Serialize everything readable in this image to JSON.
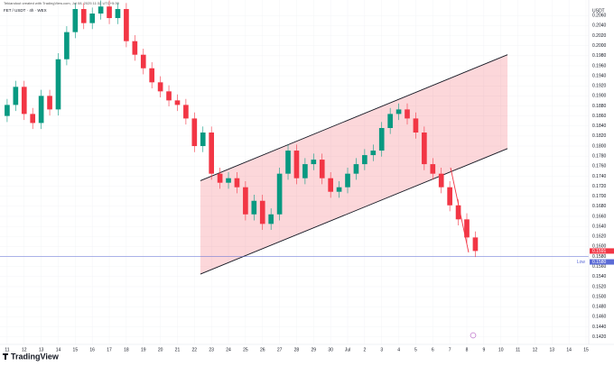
{
  "header": {
    "credit": "Tekiandout created with TradingView.com, Jul 08, 2025 11:32 UTC+5:30",
    "symbol": "FET / USDT · 4h · WEX"
  },
  "brand": "TradingView",
  "chart_data": {
    "type": "candlestick",
    "y_axis_title": "USDT",
    "up_color": "#089981",
    "down_color": "#f23645",
    "x": [
      0,
      0.5,
      1,
      1.5,
      2,
      2.5,
      3,
      3.5,
      4,
      4.5,
      5,
      5.5,
      6,
      6.5,
      7,
      7.5,
      8,
      8.5,
      9,
      9.5,
      10,
      10.5,
      11,
      11.5,
      12,
      12.5,
      13,
      13.5,
      14,
      14.5,
      15,
      15.5,
      16,
      16.5,
      17,
      17.5,
      18,
      18.5,
      19,
      19.5,
      20,
      20.5,
      21,
      21.5,
      22,
      22.5,
      23,
      23.5,
      24,
      24.5,
      25,
      25.5,
      26,
      26.5,
      27,
      27.5
    ],
    "open": [
      0.186,
      0.1882,
      0.1918,
      0.1864,
      0.1846,
      0.19,
      0.1873,
      0.1973,
      0.2027,
      0.2073,
      0.2045,
      0.2064,
      0.2078,
      0.2055,
      0.2073,
      0.2009,
      0.1982,
      0.1955,
      0.1927,
      0.1909,
      0.1891,
      0.1882,
      0.1855,
      0.18,
      0.1827,
      0.1745,
      0.1727,
      0.1736,
      0.1718,
      0.1664,
      0.1691,
      0.1645,
      0.1664,
      0.1745,
      0.1791,
      0.1736,
      0.1764,
      0.1773,
      0.1736,
      0.1709,
      0.1718,
      0.1745,
      0.1764,
      0.1782,
      0.1791,
      0.1836,
      0.1864,
      0.1873,
      0.1855,
      0.1827,
      0.1764,
      0.1745,
      0.1718,
      0.1682,
      0.1654,
      0.1618
    ],
    "high": [
      0.1894,
      0.193,
      0.193,
      0.1876,
      0.1912,
      0.1912,
      0.1985,
      0.2039,
      0.2085,
      0.2085,
      0.2076,
      0.209,
      0.209,
      0.2085,
      0.2085,
      0.2021,
      0.1994,
      0.1967,
      0.1939,
      0.1921,
      0.1903,
      0.1894,
      0.1867,
      0.1839,
      0.1839,
      0.1757,
      0.1748,
      0.1748,
      0.173,
      0.1703,
      0.1703,
      0.1676,
      0.1757,
      0.1803,
      0.1803,
      0.1776,
      0.1785,
      0.1785,
      0.1748,
      0.173,
      0.1757,
      0.1776,
      0.1794,
      0.1803,
      0.1848,
      0.1876,
      0.1885,
      0.1885,
      0.1867,
      0.1839,
      0.1776,
      0.1757,
      0.173,
      0.1694,
      0.1666,
      0.163
    ],
    "low": [
      0.1848,
      0.187,
      0.1852,
      0.1834,
      0.1834,
      0.1861,
      0.1861,
      0.1961,
      0.2015,
      0.2033,
      0.2033,
      0.2052,
      0.2043,
      0.2043,
      0.1997,
      0.197,
      0.1943,
      0.1915,
      0.1897,
      0.1879,
      0.187,
      0.1843,
      0.1788,
      0.1788,
      0.1733,
      0.1715,
      0.1715,
      0.1706,
      0.1652,
      0.1652,
      0.1633,
      0.1633,
      0.1652,
      0.1733,
      0.1724,
      0.1724,
      0.1752,
      0.1724,
      0.1697,
      0.1697,
      0.1706,
      0.1733,
      0.1752,
      0.177,
      0.1779,
      0.1824,
      0.1852,
      0.1843,
      0.1815,
      0.1752,
      0.1733,
      0.1706,
      0.167,
      0.1642,
      0.1606,
      0.1579
    ],
    "close": [
      0.1882,
      0.1918,
      0.1864,
      0.1846,
      0.19,
      0.1873,
      0.1973,
      0.2027,
      0.2073,
      0.2045,
      0.2064,
      0.2078,
      0.2055,
      0.2073,
      0.2009,
      0.1982,
      0.1955,
      0.1927,
      0.1909,
      0.1891,
      0.1882,
      0.1855,
      0.18,
      0.1827,
      0.1745,
      0.1727,
      0.1736,
      0.1718,
      0.1664,
      0.1691,
      0.1645,
      0.1664,
      0.1745,
      0.1791,
      0.1736,
      0.1764,
      0.1773,
      0.1736,
      0.1709,
      0.1718,
      0.1745,
      0.1764,
      0.1782,
      0.1791,
      0.1836,
      0.1864,
      0.1873,
      0.1855,
      0.1827,
      0.1764,
      0.1745,
      0.1718,
      0.1682,
      0.1654,
      0.1618,
      0.1591
    ],
    "channel": {
      "x": [
        11.35,
        29.39
      ],
      "upper": [
        0.1731,
        0.1982
      ],
      "lower": [
        0.1545,
        0.1795
      ],
      "color": "#f23645"
    },
    "last_price": {
      "value": 0.1591,
      "label": "0.1591"
    },
    "low_line": {
      "value": 0.158,
      "label": "0.1580",
      "name": "Low",
      "color": "#5b6bd6"
    },
    "xlim": [
      -0.42,
      34.16
    ],
    "ylim": [
      0.1405,
      0.2091
    ],
    "xticks": [
      {
        "value": 0,
        "label": "11"
      },
      {
        "value": 1,
        "label": "12"
      },
      {
        "value": 2,
        "label": "13"
      },
      {
        "value": 3,
        "label": "14"
      },
      {
        "value": 4,
        "label": "15"
      },
      {
        "value": 5,
        "label": "16"
      },
      {
        "value": 6,
        "label": "17"
      },
      {
        "value": 7,
        "label": "18"
      },
      {
        "value": 8,
        "label": "19"
      },
      {
        "value": 9,
        "label": "20"
      },
      {
        "value": 10,
        "label": "21"
      },
      {
        "value": 11,
        "label": "22"
      },
      {
        "value": 12,
        "label": "23"
      },
      {
        "value": 13,
        "label": "24"
      },
      {
        "value": 14,
        "label": "25"
      },
      {
        "value": 15,
        "label": "26"
      },
      {
        "value": 16,
        "label": "27"
      },
      {
        "value": 17,
        "label": "28"
      },
      {
        "value": 18,
        "label": "29"
      },
      {
        "value": 19,
        "label": "30"
      },
      {
        "value": 20,
        "label": "Jul"
      },
      {
        "value": 21,
        "label": "2"
      },
      {
        "value": 22,
        "label": "3"
      },
      {
        "value": 23,
        "label": "4"
      },
      {
        "value": 24,
        "label": "5"
      },
      {
        "value": 25,
        "label": "6"
      },
      {
        "value": 26,
        "label": "7"
      },
      {
        "value": 27,
        "label": "8"
      },
      {
        "value": 28,
        "label": "9"
      },
      {
        "value": 29,
        "label": "10"
      },
      {
        "value": 30,
        "label": "11"
      },
      {
        "value": 31,
        "label": "12"
      },
      {
        "value": 32,
        "label": "13"
      },
      {
        "value": 33,
        "label": "14"
      },
      {
        "value": 34,
        "label": "15"
      }
    ],
    "yticks": [
      {
        "value": 0.142,
        "label": "0.1420"
      },
      {
        "value": 0.144,
        "label": "0.1440"
      },
      {
        "value": 0.146,
        "label": "0.1460"
      },
      {
        "value": 0.148,
        "label": "0.1480"
      },
      {
        "value": 0.15,
        "label": "0.1500"
      },
      {
        "value": 0.152,
        "label": "0.1520"
      },
      {
        "value": 0.154,
        "label": "0.1540"
      },
      {
        "value": 0.156,
        "label": "0.1560"
      },
      {
        "value": 0.158,
        "label": "0.1580"
      },
      {
        "value": 0.16,
        "label": "0.1600"
      },
      {
        "value": 0.162,
        "label": "0.1620"
      },
      {
        "value": 0.164,
        "label": "0.1640"
      },
      {
        "value": 0.166,
        "label": "0.1660"
      },
      {
        "value": 0.168,
        "label": "0.1680"
      },
      {
        "value": 0.17,
        "label": "0.1700"
      },
      {
        "value": 0.172,
        "label": "0.1720"
      },
      {
        "value": 0.174,
        "label": "0.1740"
      },
      {
        "value": 0.176,
        "label": "0.1760"
      },
      {
        "value": 0.178,
        "label": "0.1780"
      },
      {
        "value": 0.18,
        "label": "0.1800"
      },
      {
        "value": 0.182,
        "label": "0.1820"
      },
      {
        "value": 0.184,
        "label": "0.1840"
      },
      {
        "value": 0.186,
        "label": "0.1860"
      },
      {
        "value": 0.188,
        "label": "0.1880"
      },
      {
        "value": 0.19,
        "label": "0.1900"
      },
      {
        "value": 0.192,
        "label": "0.1920"
      },
      {
        "value": 0.194,
        "label": "0.1940"
      },
      {
        "value": 0.196,
        "label": "0.1960"
      },
      {
        "value": 0.198,
        "label": "0.1980"
      },
      {
        "value": 0.2,
        "label": "0.2000"
      },
      {
        "value": 0.202,
        "label": "0.2020"
      },
      {
        "value": 0.204,
        "label": "0.2040"
      },
      {
        "value": 0.206,
        "label": "0.2060"
      }
    ],
    "grid": true
  }
}
